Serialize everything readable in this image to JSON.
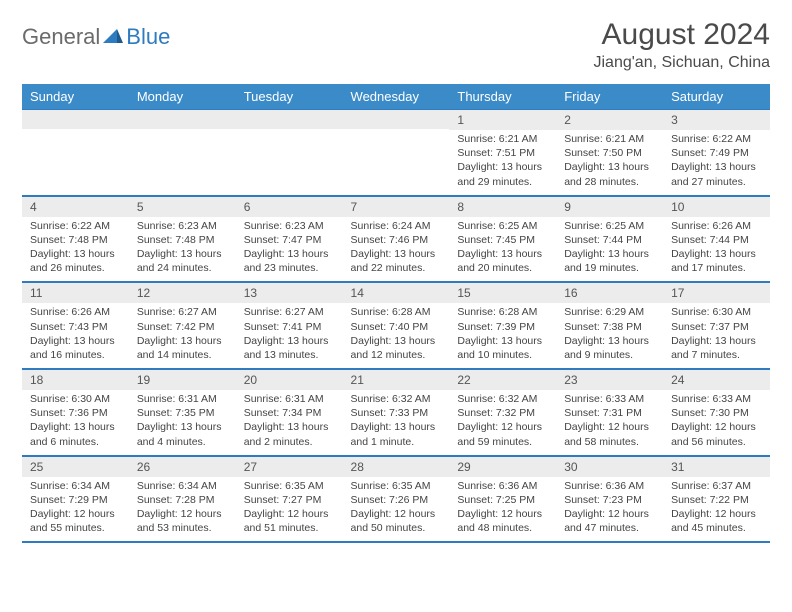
{
  "logo": {
    "text1": "General",
    "text2": "Blue"
  },
  "title": "August 2024",
  "location": "Jiang'an, Sichuan, China",
  "colors": {
    "header_bg": "#3b8bc9",
    "header_text": "#ffffff",
    "daynum_bg": "#ececec",
    "border": "#2f7bbf",
    "text": "#444444",
    "logo_gray": "#6b6b6b",
    "logo_blue": "#2f7bbf"
  },
  "day_headers": [
    "Sunday",
    "Monday",
    "Tuesday",
    "Wednesday",
    "Thursday",
    "Friday",
    "Saturday"
  ],
  "weeks": [
    [
      {
        "n": "",
        "sr": "",
        "ss": "",
        "dl": ""
      },
      {
        "n": "",
        "sr": "",
        "ss": "",
        "dl": ""
      },
      {
        "n": "",
        "sr": "",
        "ss": "",
        "dl": ""
      },
      {
        "n": "",
        "sr": "",
        "ss": "",
        "dl": ""
      },
      {
        "n": "1",
        "sr": "Sunrise: 6:21 AM",
        "ss": "Sunset: 7:51 PM",
        "dl": "Daylight: 13 hours and 29 minutes."
      },
      {
        "n": "2",
        "sr": "Sunrise: 6:21 AM",
        "ss": "Sunset: 7:50 PM",
        "dl": "Daylight: 13 hours and 28 minutes."
      },
      {
        "n": "3",
        "sr": "Sunrise: 6:22 AM",
        "ss": "Sunset: 7:49 PM",
        "dl": "Daylight: 13 hours and 27 minutes."
      }
    ],
    [
      {
        "n": "4",
        "sr": "Sunrise: 6:22 AM",
        "ss": "Sunset: 7:48 PM",
        "dl": "Daylight: 13 hours and 26 minutes."
      },
      {
        "n": "5",
        "sr": "Sunrise: 6:23 AM",
        "ss": "Sunset: 7:48 PM",
        "dl": "Daylight: 13 hours and 24 minutes."
      },
      {
        "n": "6",
        "sr": "Sunrise: 6:23 AM",
        "ss": "Sunset: 7:47 PM",
        "dl": "Daylight: 13 hours and 23 minutes."
      },
      {
        "n": "7",
        "sr": "Sunrise: 6:24 AM",
        "ss": "Sunset: 7:46 PM",
        "dl": "Daylight: 13 hours and 22 minutes."
      },
      {
        "n": "8",
        "sr": "Sunrise: 6:25 AM",
        "ss": "Sunset: 7:45 PM",
        "dl": "Daylight: 13 hours and 20 minutes."
      },
      {
        "n": "9",
        "sr": "Sunrise: 6:25 AM",
        "ss": "Sunset: 7:44 PM",
        "dl": "Daylight: 13 hours and 19 minutes."
      },
      {
        "n": "10",
        "sr": "Sunrise: 6:26 AM",
        "ss": "Sunset: 7:44 PM",
        "dl": "Daylight: 13 hours and 17 minutes."
      }
    ],
    [
      {
        "n": "11",
        "sr": "Sunrise: 6:26 AM",
        "ss": "Sunset: 7:43 PM",
        "dl": "Daylight: 13 hours and 16 minutes."
      },
      {
        "n": "12",
        "sr": "Sunrise: 6:27 AM",
        "ss": "Sunset: 7:42 PM",
        "dl": "Daylight: 13 hours and 14 minutes."
      },
      {
        "n": "13",
        "sr": "Sunrise: 6:27 AM",
        "ss": "Sunset: 7:41 PM",
        "dl": "Daylight: 13 hours and 13 minutes."
      },
      {
        "n": "14",
        "sr": "Sunrise: 6:28 AM",
        "ss": "Sunset: 7:40 PM",
        "dl": "Daylight: 13 hours and 12 minutes."
      },
      {
        "n": "15",
        "sr": "Sunrise: 6:28 AM",
        "ss": "Sunset: 7:39 PM",
        "dl": "Daylight: 13 hours and 10 minutes."
      },
      {
        "n": "16",
        "sr": "Sunrise: 6:29 AM",
        "ss": "Sunset: 7:38 PM",
        "dl": "Daylight: 13 hours and 9 minutes."
      },
      {
        "n": "17",
        "sr": "Sunrise: 6:30 AM",
        "ss": "Sunset: 7:37 PM",
        "dl": "Daylight: 13 hours and 7 minutes."
      }
    ],
    [
      {
        "n": "18",
        "sr": "Sunrise: 6:30 AM",
        "ss": "Sunset: 7:36 PM",
        "dl": "Daylight: 13 hours and 6 minutes."
      },
      {
        "n": "19",
        "sr": "Sunrise: 6:31 AM",
        "ss": "Sunset: 7:35 PM",
        "dl": "Daylight: 13 hours and 4 minutes."
      },
      {
        "n": "20",
        "sr": "Sunrise: 6:31 AM",
        "ss": "Sunset: 7:34 PM",
        "dl": "Daylight: 13 hours and 2 minutes."
      },
      {
        "n": "21",
        "sr": "Sunrise: 6:32 AM",
        "ss": "Sunset: 7:33 PM",
        "dl": "Daylight: 13 hours and 1 minute."
      },
      {
        "n": "22",
        "sr": "Sunrise: 6:32 AM",
        "ss": "Sunset: 7:32 PM",
        "dl": "Daylight: 12 hours and 59 minutes."
      },
      {
        "n": "23",
        "sr": "Sunrise: 6:33 AM",
        "ss": "Sunset: 7:31 PM",
        "dl": "Daylight: 12 hours and 58 minutes."
      },
      {
        "n": "24",
        "sr": "Sunrise: 6:33 AM",
        "ss": "Sunset: 7:30 PM",
        "dl": "Daylight: 12 hours and 56 minutes."
      }
    ],
    [
      {
        "n": "25",
        "sr": "Sunrise: 6:34 AM",
        "ss": "Sunset: 7:29 PM",
        "dl": "Daylight: 12 hours and 55 minutes."
      },
      {
        "n": "26",
        "sr": "Sunrise: 6:34 AM",
        "ss": "Sunset: 7:28 PM",
        "dl": "Daylight: 12 hours and 53 minutes."
      },
      {
        "n": "27",
        "sr": "Sunrise: 6:35 AM",
        "ss": "Sunset: 7:27 PM",
        "dl": "Daylight: 12 hours and 51 minutes."
      },
      {
        "n": "28",
        "sr": "Sunrise: 6:35 AM",
        "ss": "Sunset: 7:26 PM",
        "dl": "Daylight: 12 hours and 50 minutes."
      },
      {
        "n": "29",
        "sr": "Sunrise: 6:36 AM",
        "ss": "Sunset: 7:25 PM",
        "dl": "Daylight: 12 hours and 48 minutes."
      },
      {
        "n": "30",
        "sr": "Sunrise: 6:36 AM",
        "ss": "Sunset: 7:23 PM",
        "dl": "Daylight: 12 hours and 47 minutes."
      },
      {
        "n": "31",
        "sr": "Sunrise: 6:37 AM",
        "ss": "Sunset: 7:22 PM",
        "dl": "Daylight: 12 hours and 45 minutes."
      }
    ]
  ]
}
